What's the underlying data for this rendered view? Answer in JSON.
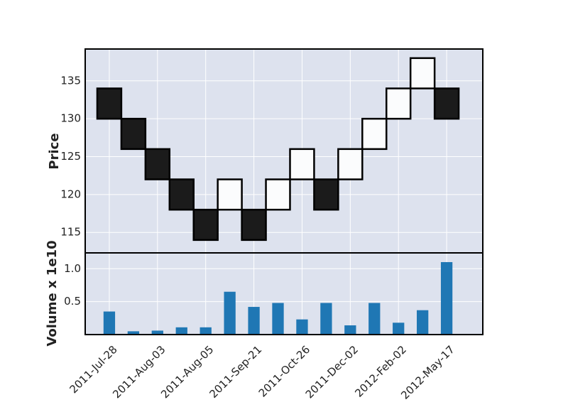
{
  "chart_data": [
    {
      "type": "renko",
      "ylabel": "Price",
      "ylim": [
        112.3,
        139.2
      ],
      "yticks": [
        115,
        120,
        125,
        130,
        135
      ],
      "box_size": 4,
      "bricks": [
        {
          "low": 130,
          "high": 134,
          "direction": "down"
        },
        {
          "low": 126,
          "high": 130,
          "direction": "down"
        },
        {
          "low": 122,
          "high": 126,
          "direction": "down"
        },
        {
          "low": 118,
          "high": 122,
          "direction": "down"
        },
        {
          "low": 114,
          "high": 118,
          "direction": "down"
        },
        {
          "low": 118,
          "high": 122,
          "direction": "up"
        },
        {
          "low": 114,
          "high": 118,
          "direction": "down"
        },
        {
          "low": 118,
          "high": 122,
          "direction": "up"
        },
        {
          "low": 122,
          "high": 126,
          "direction": "up"
        },
        {
          "low": 118,
          "high": 122,
          "direction": "down"
        },
        {
          "low": 122,
          "high": 126,
          "direction": "up"
        },
        {
          "low": 126,
          "high": 130,
          "direction": "up"
        },
        {
          "low": 130,
          "high": 134,
          "direction": "up"
        },
        {
          "low": 134,
          "high": 138,
          "direction": "up"
        },
        {
          "low": 130,
          "high": 134,
          "direction": "down"
        }
      ],
      "grid": true
    },
    {
      "type": "bar",
      "ylabel": "Volume x 1e10",
      "ylim": [
        0,
        1.24
      ],
      "yticks": [
        0.5,
        1.0
      ],
      "ytick_labels": [
        "0.5",
        "1.0"
      ],
      "values": [
        0.35,
        0.05,
        0.06,
        0.11,
        0.11,
        0.65,
        0.42,
        0.48,
        0.23,
        0.48,
        0.14,
        0.48,
        0.18,
        0.37,
        1.1
      ],
      "grid": true
    }
  ],
  "x_tick_labels": [
    "2011-Jul-28",
    "2011-Aug-03",
    "2011-Aug-05",
    "2011-Sep-21",
    "2011-Oct-26",
    "2011-Dec-02",
    "2012-Feb-02",
    "2012-May-17"
  ],
  "x_tick_positions": [
    1,
    3,
    5,
    7,
    9,
    11,
    13,
    15
  ],
  "colors": {
    "panel_bg": "#dde2ee",
    "grid": "#ffffff",
    "brick_down": "#1b1b1b",
    "brick_up": "#fbfcfd",
    "volume_bar": "#1f77b4"
  }
}
